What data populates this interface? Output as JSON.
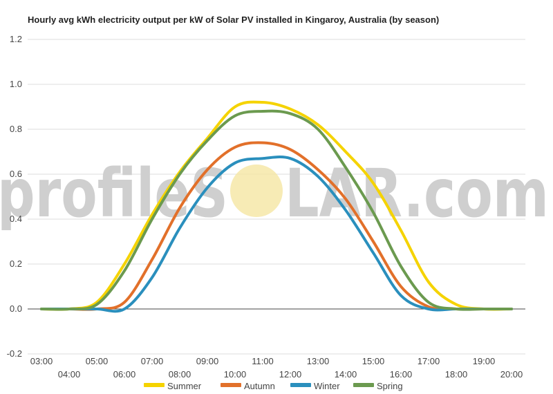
{
  "watermark": {
    "left": "profileS",
    "right": "LAR.com"
  },
  "chart_data": {
    "type": "line",
    "title": "Hourly avg kWh electricity output per kW of Solar PV installed in Kingaroy, Australia (by season)",
    "xlabel": "",
    "ylabel": "",
    "ylim": [
      -0.2,
      1.2
    ],
    "yticks": [
      -0.2,
      0.0,
      0.2,
      0.4,
      0.6,
      0.8,
      1.0,
      1.2
    ],
    "ytick_labels": [
      "-0.2",
      "0.0",
      "0.2",
      "0.4",
      "0.6",
      "0.8",
      "1.0",
      "1.2"
    ],
    "xlim": [
      2.5,
      20.5
    ],
    "x": [
      3,
      4,
      5,
      6,
      7,
      8,
      9,
      10,
      11,
      12,
      13,
      14,
      15,
      16,
      17,
      18,
      19,
      20
    ],
    "xtick_labels": [
      "03:00",
      "04:00",
      "05:00",
      "06:00",
      "07:00",
      "08:00",
      "09:00",
      "10:00",
      "11:00",
      "12:00",
      "13:00",
      "14:00",
      "15:00",
      "16:00",
      "17:00",
      "18:00",
      "19:00",
      "20:00"
    ],
    "grid": true,
    "legend_position": "bottom",
    "series": [
      {
        "name": "Summer",
        "color": "#f5d300",
        "values": [
          0.0,
          0.0,
          0.03,
          0.2,
          0.42,
          0.61,
          0.76,
          0.9,
          0.92,
          0.89,
          0.82,
          0.7,
          0.56,
          0.35,
          0.12,
          0.02,
          0.0,
          0.0
        ]
      },
      {
        "name": "Autumn",
        "color": "#e2702a",
        "values": [
          0.0,
          0.0,
          0.0,
          0.03,
          0.22,
          0.45,
          0.62,
          0.72,
          0.74,
          0.71,
          0.62,
          0.49,
          0.3,
          0.1,
          0.01,
          0.0,
          0.0,
          0.0
        ]
      },
      {
        "name": "Winter",
        "color": "#2a8fbd",
        "values": [
          0.0,
          0.0,
          0.0,
          0.0,
          0.14,
          0.36,
          0.54,
          0.65,
          0.67,
          0.67,
          0.59,
          0.44,
          0.25,
          0.06,
          0.0,
          0.0,
          0.0,
          0.0
        ]
      },
      {
        "name": "Spring",
        "color": "#6b9a4f",
        "values": [
          0.0,
          0.0,
          0.02,
          0.17,
          0.4,
          0.6,
          0.75,
          0.86,
          0.88,
          0.87,
          0.8,
          0.63,
          0.43,
          0.19,
          0.03,
          0.0,
          0.0,
          0.0
        ]
      }
    ]
  }
}
